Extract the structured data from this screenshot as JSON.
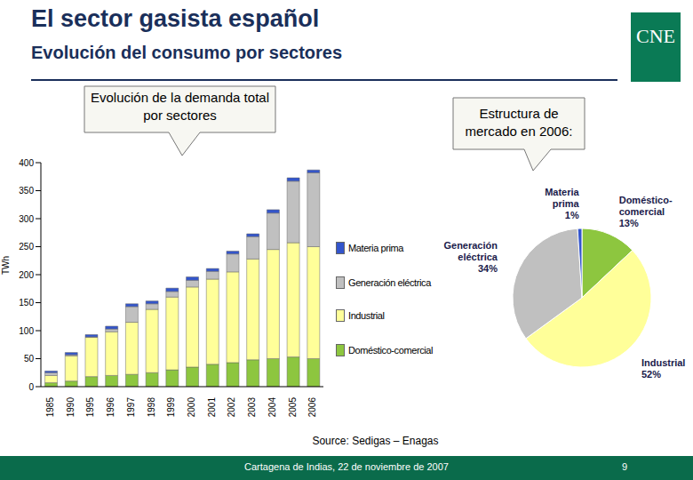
{
  "header": {
    "title": "El sector gasista español",
    "subtitle": "Evolución del consumo por sectores",
    "logo": "CNE"
  },
  "source": "Source: Sedigas – Enagas",
  "footer": {
    "text": "Cartagena de Indias, 22 de noviembre de 2007",
    "page": 9
  },
  "chart_data": [
    {
      "type": "bar",
      "title": "Evolución de la demanda total por sectores",
      "y_label": "TWh",
      "stacked": true,
      "grid": false,
      "legend": "right",
      "categories": [
        "1985",
        "1990",
        "1995",
        "1996",
        "1997",
        "1998",
        "1999",
        "2000",
        "2001",
        "2002",
        "2003",
        "2004",
        "2005",
        "2006"
      ],
      "series": [
        {
          "name": "Doméstico-comercial",
          "color": "#8dc63f",
          "values": [
            7,
            10,
            18,
            20,
            22,
            25,
            30,
            35,
            40,
            43,
            48,
            50,
            53,
            50
          ]
        },
        {
          "name": "Industrial",
          "color": "#ffff99",
          "values": [
            13,
            45,
            70,
            78,
            93,
            113,
            130,
            143,
            152,
            162,
            180,
            195,
            204,
            200
          ]
        },
        {
          "name": "Generación eléctrica",
          "color": "#c0c0c0",
          "values": [
            5,
            2,
            1,
            5,
            28,
            10,
            10,
            12,
            14,
            32,
            40,
            65,
            110,
            132
          ]
        },
        {
          "name": "Materia prima",
          "color": "#3355cc",
          "values": [
            3,
            4,
            4,
            5,
            5,
            5,
            6,
            6,
            5,
            5,
            5,
            6,
            6,
            5
          ]
        }
      ],
      "ylim": [
        0,
        400
      ],
      "yticks": [
        0,
        50,
        100,
        150,
        200,
        250,
        300,
        350,
        400
      ]
    },
    {
      "type": "pie",
      "title": "Estructura de mercado en 2006:",
      "data_labels": true,
      "categories": [
        "Doméstico-comercial",
        "Industrial",
        "Generación eléctrica",
        "Materia prima"
      ],
      "values": [
        13,
        52,
        34,
        1
      ],
      "value_labels": [
        "13%",
        "52%",
        "34%",
        "1%"
      ],
      "colors": [
        "#8dc63f",
        "#ffff99",
        "#c0c0c0",
        "#3355cc"
      ]
    }
  ]
}
